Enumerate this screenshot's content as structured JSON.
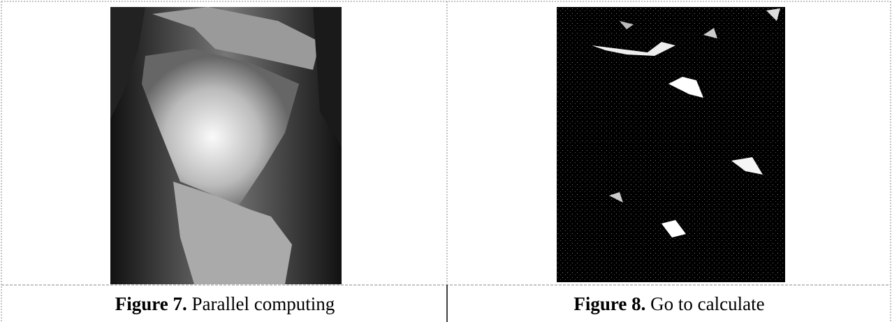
{
  "figures": [
    {
      "label": "Figure 7.",
      "caption": "Parallel computing"
    },
    {
      "label": "Figure 8.",
      "caption": "Go to calculate"
    }
  ]
}
